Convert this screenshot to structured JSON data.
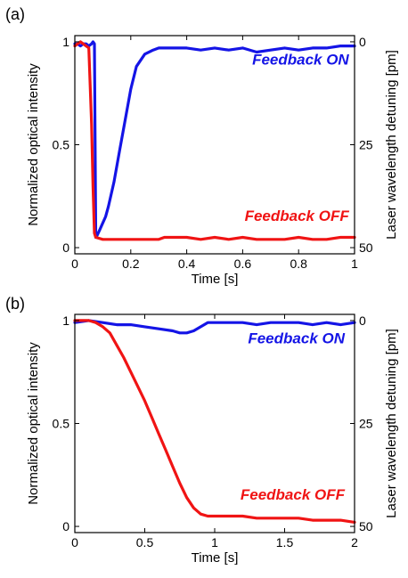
{
  "colors": {
    "feedback_on": "#1414e6",
    "feedback_off": "#f01414",
    "axis": "#000000"
  },
  "chart_data": [
    {
      "type": "line",
      "panel_label": "(a)",
      "xlabel": "Time [s]",
      "ylabel": "Normalized optical intensity",
      "ylabel_right": "Laser wavelength detuning [pm]",
      "xlim": [
        0,
        1
      ],
      "ylim": [
        -0.03,
        1.03
      ],
      "xticks": [
        0,
        0.2,
        0.4,
        0.6,
        0.8,
        1
      ],
      "xtick_labels": [
        "0",
        "0.2",
        "0.4",
        "0.6",
        "0.8",
        "1"
      ],
      "yticks": [
        0,
        0.5,
        1
      ],
      "ytick_labels": [
        "0",
        "0.5",
        "1"
      ],
      "yticks_right": [
        1,
        0.5,
        0
      ],
      "ytick_labels_right": [
        "0",
        "25",
        "50"
      ],
      "annotations": [
        {
          "text": "Feedback ON",
          "color": "#1414e6",
          "x": 0.98,
          "y": 0.89
        },
        {
          "text": "Feedback OFF",
          "color": "#f01414",
          "x": 0.98,
          "y": 0.13
        }
      ],
      "series": [
        {
          "color": "#1414e6",
          "x": [
            0,
            0.01,
            0.02,
            0.03,
            0.04,
            0.05,
            0.06,
            0.065,
            0.07,
            0.075,
            0.08,
            0.09,
            0.1,
            0.11,
            0.12,
            0.14,
            0.16,
            0.18,
            0.2,
            0.22,
            0.25,
            0.28,
            0.3,
            0.35,
            0.4,
            0.45,
            0.5,
            0.55,
            0.6,
            0.65,
            0.7,
            0.75,
            0.8,
            0.85,
            0.9,
            0.95,
            1
          ],
          "y": [
            0.99,
            0.99,
            0.98,
            0.99,
            0.99,
            0.98,
            0.99,
            1.0,
            0.99,
            0.05,
            0.06,
            0.09,
            0.12,
            0.15,
            0.2,
            0.32,
            0.47,
            0.62,
            0.77,
            0.88,
            0.94,
            0.96,
            0.97,
            0.97,
            0.97,
            0.96,
            0.97,
            0.96,
            0.97,
            0.95,
            0.96,
            0.97,
            0.96,
            0.97,
            0.97,
            0.98,
            0.98
          ]
        },
        {
          "color": "#f01414",
          "x": [
            0,
            0.01,
            0.02,
            0.03,
            0.04,
            0.05,
            0.06,
            0.065,
            0.07,
            0.075,
            0.1,
            0.15,
            0.2,
            0.25,
            0.3,
            0.32,
            0.35,
            0.4,
            0.45,
            0.5,
            0.55,
            0.6,
            0.65,
            0.7,
            0.75,
            0.8,
            0.85,
            0.9,
            0.95,
            1
          ],
          "y": [
            0.98,
            0.99,
            1.0,
            0.99,
            0.98,
            0.97,
            0.6,
            0.3,
            0.07,
            0.05,
            0.04,
            0.04,
            0.04,
            0.04,
            0.04,
            0.05,
            0.05,
            0.05,
            0.04,
            0.05,
            0.04,
            0.05,
            0.04,
            0.04,
            0.04,
            0.05,
            0.04,
            0.04,
            0.05,
            0.05
          ]
        }
      ]
    },
    {
      "type": "line",
      "panel_label": "(b)",
      "xlabel": "Time [s]",
      "ylabel": "Normalized optical intensity",
      "ylabel_right": "Laser wavelength detuning [pm]",
      "xlim": [
        0,
        2
      ],
      "ylim": [
        -0.03,
        1.03
      ],
      "xticks": [
        0,
        0.5,
        1,
        1.5,
        2
      ],
      "xtick_labels": [
        "0",
        "0.5",
        "1",
        "1.5",
        "2"
      ],
      "yticks": [
        0,
        0.5,
        1
      ],
      "ytick_labels": [
        "0",
        "0.5",
        "1"
      ],
      "yticks_right": [
        1,
        0.5,
        0
      ],
      "ytick_labels_right": [
        "0",
        "25",
        "50"
      ],
      "annotations": [
        {
          "text": "Feedback ON",
          "color": "#1414e6",
          "x": 1.93,
          "y": 0.89
        },
        {
          "text": "Feedback OFF",
          "color": "#f01414",
          "x": 1.93,
          "y": 0.13
        }
      ],
      "series": [
        {
          "color": "#1414e6",
          "x": [
            0,
            0.1,
            0.2,
            0.3,
            0.4,
            0.5,
            0.6,
            0.7,
            0.75,
            0.8,
            0.85,
            0.9,
            0.95,
            1.0,
            1.1,
            1.2,
            1.3,
            1.4,
            1.5,
            1.6,
            1.7,
            1.8,
            1.9,
            2.0
          ],
          "y": [
            0.99,
            1.0,
            0.99,
            0.98,
            0.98,
            0.97,
            0.96,
            0.95,
            0.94,
            0.94,
            0.95,
            0.97,
            0.99,
            0.99,
            0.99,
            0.99,
            0.98,
            0.99,
            0.99,
            0.99,
            0.98,
            0.99,
            0.98,
            0.99
          ]
        },
        {
          "color": "#f01414",
          "x": [
            0,
            0.1,
            0.15,
            0.2,
            0.25,
            0.3,
            0.35,
            0.4,
            0.45,
            0.5,
            0.55,
            0.6,
            0.65,
            0.7,
            0.75,
            0.8,
            0.85,
            0.9,
            0.95,
            1.0,
            1.1,
            1.2,
            1.3,
            1.4,
            1.5,
            1.6,
            1.7,
            1.8,
            1.9,
            2.0
          ],
          "y": [
            1.0,
            1.0,
            0.99,
            0.97,
            0.94,
            0.88,
            0.82,
            0.75,
            0.68,
            0.61,
            0.53,
            0.45,
            0.37,
            0.29,
            0.21,
            0.14,
            0.09,
            0.06,
            0.05,
            0.05,
            0.05,
            0.05,
            0.04,
            0.04,
            0.04,
            0.04,
            0.03,
            0.03,
            0.03,
            0.02
          ]
        }
      ]
    }
  ]
}
